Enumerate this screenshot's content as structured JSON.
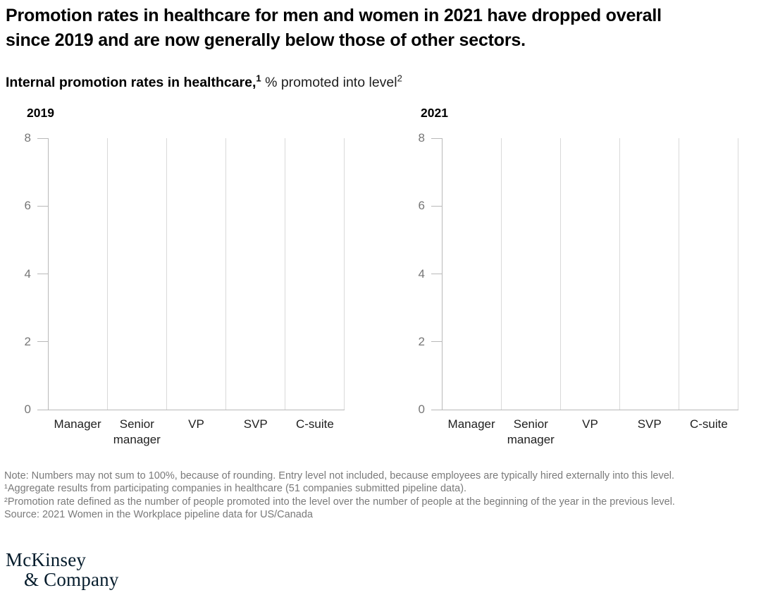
{
  "header": {
    "title": "Promotion rates in healthcare for men and women in 2021 have dropped overall since 2019 and are now generally below those of other sectors.",
    "subtitle_bold": "Internal promotion rates in healthcare,",
    "subtitle_sup1": "1",
    "subtitle_regular": " % promoted into level",
    "subtitle_sup2": "2"
  },
  "chart_data": [
    {
      "type": "bar",
      "title": "2019",
      "categories": [
        "Manager",
        "Senior manager",
        "VP",
        "SVP",
        "C-suite"
      ],
      "series": [],
      "values": [],
      "bars_rendered": false,
      "ylim": [
        0,
        8
      ],
      "yticks": [
        0,
        2,
        4,
        6,
        8
      ],
      "xlabel": "",
      "ylabel": "",
      "grid": "vertical category separator lines only",
      "legend": "none"
    },
    {
      "type": "bar",
      "title": "2021",
      "categories": [
        "Manager",
        "Senior manager",
        "VP",
        "SVP",
        "C-suite"
      ],
      "series": [],
      "values": [],
      "bars_rendered": false,
      "ylim": [
        0,
        8
      ],
      "yticks": [
        0,
        2,
        4,
        6,
        8
      ],
      "xlabel": "",
      "ylabel": "",
      "grid": "vertical category separator lines only",
      "legend": "none"
    }
  ],
  "footnotes": {
    "lines": [
      "Note: Numbers may not sum to 100%, because of rounding. Entry level not included, because employees are typically hired externally into this level.",
      "¹Aggregate results from participating companies in healthcare (51 companies submitted pipeline data).",
      "²Promotion rate defined as the number of people promoted into the level over the number of people at the beginning of the year in the previous level.",
      "Source: 2021 Women in the Workplace pipeline data for US/Canada"
    ]
  },
  "logo": {
    "line1": "McKinsey",
    "line2": "& Company"
  },
  "colors": {
    "background": "#ffffff",
    "title_text": "#000000",
    "axis_line": "#b9b9b9",
    "gridline": "#d9d9d9",
    "y_tick_label": "#767676",
    "category_label": "#1f1f1f",
    "footnote_text": "#7a7a7a",
    "logo_navy": "#051c2c"
  }
}
